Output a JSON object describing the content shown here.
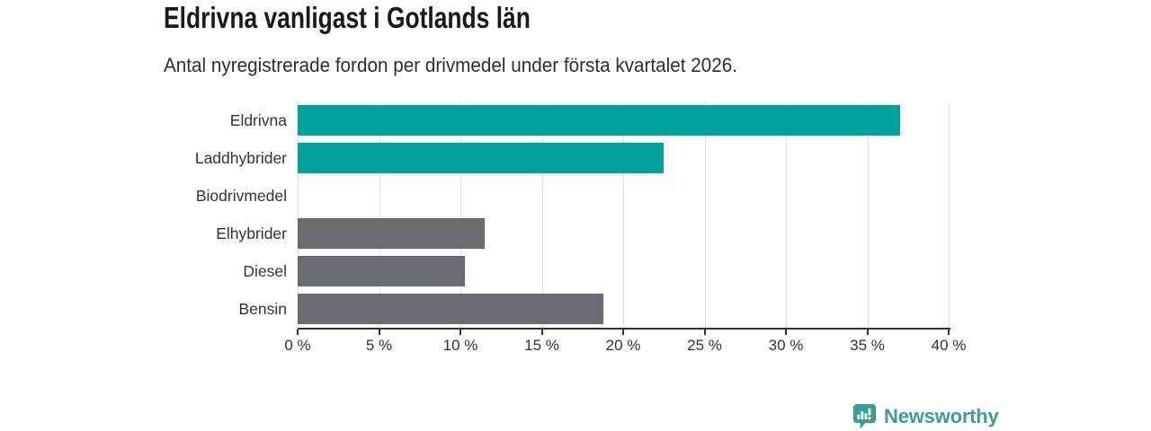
{
  "header": {
    "title": "Eldrivna vanligast i Gotlands län",
    "subtitle": "Antal nyregistrerade fordon per drivmedel under första kvartalet 2026."
  },
  "chart_data": {
    "type": "bar",
    "orientation": "horizontal",
    "title": "Eldrivna vanligast i Gotlands län",
    "subtitle": "Antal nyregistrerade fordon per drivmedel under första kvartalet 2026.",
    "categories": [
      "Eldrivna",
      "Laddhybrider",
      "Biodrivmedel",
      "Elhybrider",
      "Diesel",
      "Bensin"
    ],
    "values": [
      37,
      22.5,
      0,
      11.5,
      10.3,
      18.8
    ],
    "unit": "%",
    "xlim": [
      0,
      40
    ],
    "tick_values": [
      0,
      5,
      10,
      15,
      20,
      25,
      30,
      35,
      40
    ],
    "tick_labels": [
      "0 %",
      "5 %",
      "10 %",
      "15 %",
      "20 %",
      "25 %",
      "30 %",
      "35 %",
      "40 %"
    ],
    "bar_colors": [
      "#00a29b",
      "#00a29b",
      "#6b6b72",
      "#6b6b72",
      "#6b6b72",
      "#6b6b72"
    ],
    "highlight_color": "#00a29b",
    "default_color": "#6b6b72",
    "grid": true,
    "legend": false
  },
  "footer": {
    "brand_name": "Newsworthy",
    "brand_color": "#3d9c95"
  }
}
